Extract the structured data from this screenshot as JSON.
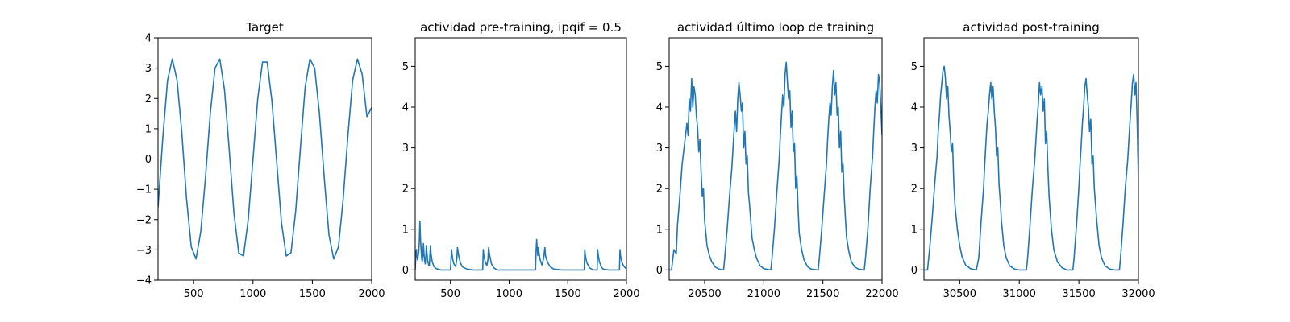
{
  "chart_data": [
    {
      "type": "line",
      "title": "Target",
      "xlabel": "",
      "ylabel": "",
      "xlim": [
        200,
        2000
      ],
      "ylim": [
        -4,
        4
      ],
      "xticks": [
        500,
        1000,
        1500,
        2000
      ],
      "yticks": [
        -4,
        -3,
        -2,
        -1,
        0,
        1,
        2,
        3,
        4
      ],
      "grid": false,
      "line_color": "#1f77b4",
      "series": [
        {
          "x": [
            200,
            240,
            280,
            320,
            360,
            400,
            440,
            480,
            520,
            560,
            600,
            640,
            680,
            720,
            760,
            800,
            840,
            880,
            920,
            960,
            1000,
            1040,
            1080,
            1120,
            1160,
            1200,
            1240,
            1280,
            1320,
            1360,
            1400,
            1440,
            1480,
            1520,
            1560,
            1600,
            1640,
            1680,
            1720,
            1760,
            1800,
            1840,
            1880,
            1920,
            1960,
            2000
          ],
          "y": [
            -1.6,
            0.7,
            2.6,
            3.3,
            2.6,
            0.9,
            -1.3,
            -2.9,
            -3.3,
            -2.4,
            -0.6,
            1.5,
            3.0,
            3.3,
            2.3,
            0.3,
            -1.8,
            -3.1,
            -3.2,
            -2.0,
            0.0,
            2.0,
            3.2,
            3.2,
            1.9,
            -0.1,
            -2.1,
            -3.2,
            -3.1,
            -1.7,
            0.4,
            2.4,
            3.3,
            3.0,
            1.5,
            -0.6,
            -2.5,
            -3.3,
            -2.9,
            -1.3,
            0.8,
            2.6,
            3.3,
            2.8,
            1.4,
            1.7
          ]
        }
      ]
    },
    {
      "type": "line",
      "title": "actividad pre-training, ipqif = 0.5",
      "xlabel": "",
      "ylabel": "",
      "xlim": [
        200,
        2000
      ],
      "ylim": [
        -0.25,
        5.7
      ],
      "xticks": [
        500,
        1000,
        1500,
        2000
      ],
      "yticks": [
        0,
        1,
        2,
        3,
        4,
        5
      ],
      "grid": false,
      "line_color": "#1f77b4",
      "series": [
        {
          "x": [
            200,
            205,
            210,
            215,
            220,
            230,
            235,
            240,
            245,
            250,
            255,
            260,
            265,
            270,
            275,
            280,
            285,
            290,
            295,
            300,
            305,
            310,
            315,
            320,
            325,
            330,
            335,
            345,
            360,
            380,
            420,
            500,
            510,
            515,
            520,
            530,
            545,
            555,
            560,
            570,
            585,
            600,
            640,
            700,
            775,
            780,
            785,
            795,
            810,
            820,
            825,
            835,
            850,
            870,
            900,
            1000,
            1100,
            1200,
            1225,
            1230,
            1235,
            1240,
            1245,
            1250,
            1255,
            1265,
            1280,
            1295,
            1305,
            1310,
            1320,
            1335,
            1350,
            1380,
            1450,
            1550,
            1640,
            1645,
            1650,
            1660,
            1675,
            1690,
            1720,
            1750,
            1755,
            1760,
            1770,
            1785,
            1800,
            1850,
            1940,
            1945,
            1950,
            1960,
            1975,
            1990,
            2000
          ],
          "y": [
            0.0,
            0.3,
            0.5,
            0.35,
            0.25,
            0.45,
            0.7,
            1.2,
            0.8,
            0.5,
            0.3,
            0.2,
            0.35,
            0.65,
            0.4,
            0.25,
            0.15,
            0.3,
            0.6,
            0.4,
            0.25,
            0.18,
            0.12,
            0.1,
            0.35,
            0.6,
            0.4,
            0.2,
            0.08,
            0.03,
            0.0,
            0.0,
            0.5,
            0.35,
            0.25,
            0.15,
            0.08,
            0.3,
            0.55,
            0.35,
            0.18,
            0.08,
            0.02,
            0.0,
            0.0,
            0.5,
            0.35,
            0.22,
            0.1,
            0.25,
            0.55,
            0.35,
            0.15,
            0.05,
            0.0,
            0.0,
            0.0,
            0.0,
            0.0,
            0.45,
            0.75,
            0.5,
            0.35,
            0.55,
            0.4,
            0.25,
            0.12,
            0.3,
            0.55,
            0.35,
            0.25,
            0.15,
            0.08,
            0.02,
            0.0,
            0.0,
            0.0,
            0.5,
            0.35,
            0.2,
            0.1,
            0.04,
            0.0,
            0.0,
            0.5,
            0.35,
            0.2,
            0.08,
            0.02,
            0.0,
            0.0,
            0.5,
            0.35,
            0.2,
            0.1,
            0.05,
            0.03
          ]
        }
      ]
    },
    {
      "type": "line",
      "title": "actividad último loop de training",
      "xlabel": "",
      "ylabel": "",
      "xlim": [
        20200,
        22000
      ],
      "ylim": [
        -0.25,
        5.7
      ],
      "xticks": [
        20500,
        21000,
        21500,
        22000
      ],
      "yticks": [
        0,
        1,
        2,
        3,
        4,
        5
      ],
      "grid": false,
      "line_color": "#1f77b4",
      "series": [
        {
          "x": [
            20200,
            20220,
            20240,
            20260,
            20270,
            20290,
            20310,
            20330,
            20350,
            20360,
            20370,
            20380,
            20390,
            20400,
            20410,
            20420,
            20430,
            20440,
            20450,
            20460,
            20470,
            20480,
            20490,
            20500,
            20510,
            20520,
            20540,
            20560,
            20590,
            20620,
            20660,
            20670,
            20690,
            20710,
            20730,
            20740,
            20750,
            20760,
            20770,
            20780,
            20790,
            20800,
            20810,
            20820,
            20830,
            20840,
            20850,
            20860,
            20870,
            20880,
            20890,
            20900,
            20920,
            20940,
            20970,
            21000,
            21060,
            21070,
            21090,
            21110,
            21130,
            21140,
            21150,
            21160,
            21170,
            21180,
            21190,
            21200,
            21210,
            21220,
            21230,
            21240,
            21250,
            21260,
            21270,
            21280,
            21290,
            21300,
            21320,
            21340,
            21370,
            21400,
            21460,
            21470,
            21490,
            21510,
            21530,
            21540,
            21550,
            21560,
            21570,
            21580,
            21590,
            21600,
            21610,
            21620,
            21630,
            21640,
            21650,
            21660,
            21670,
            21680,
            21690,
            21700,
            21720,
            21740,
            21770,
            21800,
            21850,
            21860,
            21880,
            21900,
            21920,
            21930,
            21940,
            21950,
            21960,
            21970,
            21980,
            21990,
            22000
          ],
          "y": [
            0.0,
            0.0,
            0.5,
            0.4,
            1.1,
            1.8,
            2.6,
            3.1,
            3.6,
            3.3,
            4.2,
            3.9,
            4.7,
            4.0,
            4.5,
            4.3,
            3.8,
            3.5,
            2.9,
            3.2,
            2.4,
            1.8,
            2.0,
            1.2,
            0.9,
            0.6,
            0.35,
            0.2,
            0.07,
            0.02,
            0.0,
            0.3,
            1.0,
            1.8,
            2.5,
            3.0,
            3.5,
            3.9,
            3.4,
            4.2,
            4.6,
            4.3,
            3.9,
            4.1,
            3.0,
            3.4,
            2.6,
            2.8,
            1.9,
            1.6,
            1.2,
            0.8,
            0.5,
            0.28,
            0.1,
            0.03,
            0.0,
            0.3,
            1.0,
            1.9,
            2.7,
            3.3,
            3.8,
            4.3,
            4.0,
            4.8,
            5.1,
            4.6,
            4.2,
            4.4,
            3.5,
            3.9,
            2.9,
            3.1,
            2.0,
            2.3,
            1.5,
            0.9,
            0.5,
            0.25,
            0.08,
            0.02,
            0.0,
            0.3,
            1.0,
            1.8,
            2.6,
            3.2,
            3.7,
            4.1,
            3.8,
            4.5,
            4.9,
            4.3,
            4.6,
            3.8,
            4.0,
            3.0,
            3.4,
            2.4,
            2.6,
            1.8,
            1.3,
            0.8,
            0.45,
            0.2,
            0.07,
            0.02,
            0.0,
            0.3,
            1.0,
            2.0,
            2.8,
            3.4,
            4.0,
            4.4,
            4.1,
            4.8,
            4.6,
            4.0,
            3.3
          ]
        }
      ]
    },
    {
      "type": "line",
      "title": "actividad post-training",
      "xlabel": "",
      "ylabel": "",
      "xlim": [
        30200,
        32000
      ],
      "ylim": [
        -0.25,
        5.7
      ],
      "xticks": [
        30500,
        31000,
        31500,
        32000
      ],
      "yticks": [
        0,
        1,
        2,
        3,
        4,
        5
      ],
      "grid": false,
      "line_color": "#1f77b4",
      "series": [
        {
          "x": [
            30200,
            30230,
            30250,
            30270,
            30290,
            30310,
            30320,
            30330,
            30340,
            30350,
            30360,
            30370,
            30380,
            30390,
            30400,
            30410,
            30420,
            30430,
            30440,
            30450,
            30460,
            30480,
            30500,
            30520,
            30550,
            30590,
            30640,
            30660,
            30680,
            30700,
            30710,
            30720,
            30730,
            30740,
            30750,
            30760,
            30770,
            30780,
            30790,
            30800,
            30810,
            30820,
            30830,
            30840,
            30850,
            30870,
            30890,
            30920,
            30960,
            31000,
            31060,
            31070,
            31090,
            31110,
            31130,
            31140,
            31150,
            31160,
            31170,
            31180,
            31190,
            31200,
            31210,
            31220,
            31230,
            31240,
            31250,
            31270,
            31290,
            31320,
            31360,
            31400,
            31450,
            31460,
            31480,
            31500,
            31510,
            31520,
            31530,
            31540,
            31550,
            31560,
            31570,
            31580,
            31590,
            31600,
            31610,
            31620,
            31630,
            31640,
            31650,
            31670,
            31690,
            31720,
            31760,
            31800,
            31840,
            31850,
            31870,
            31890,
            31910,
            31920,
            31930,
            31940,
            31950,
            31960,
            31970,
            31980,
            31990,
            32000
          ],
          "y": [
            0.0,
            0.0,
            0.6,
            1.3,
            2.1,
            2.8,
            3.4,
            3.8,
            4.3,
            4.6,
            4.9,
            5.0,
            4.7,
            4.2,
            4.5,
            3.8,
            3.4,
            2.9,
            3.1,
            2.2,
            1.6,
            1.0,
            0.6,
            0.32,
            0.12,
            0.03,
            0.0,
            0.3,
            1.2,
            2.0,
            2.6,
            3.1,
            3.6,
            3.9,
            4.3,
            4.6,
            4.2,
            4.5,
            3.9,
            3.5,
            2.8,
            3.0,
            2.1,
            1.7,
            1.2,
            0.6,
            0.3,
            0.1,
            0.02,
            0.0,
            0.0,
            0.3,
            1.1,
            2.0,
            2.7,
            3.2,
            3.7,
            4.1,
            4.6,
            4.3,
            4.5,
            3.9,
            4.2,
            3.1,
            3.4,
            2.5,
            1.8,
            1.0,
            0.5,
            0.2,
            0.05,
            0.0,
            0.0,
            0.3,
            1.1,
            2.0,
            2.6,
            3.1,
            3.6,
            4.0,
            4.5,
            4.7,
            4.3,
            4.0,
            3.4,
            3.7,
            2.6,
            2.8,
            2.0,
            1.6,
            1.2,
            0.6,
            0.3,
            0.1,
            0.02,
            0.0,
            0.0,
            0.3,
            1.1,
            2.0,
            2.7,
            3.2,
            3.7,
            4.1,
            4.6,
            4.8,
            4.3,
            4.6,
            3.6,
            2.2
          ]
        }
      ]
    }
  ]
}
